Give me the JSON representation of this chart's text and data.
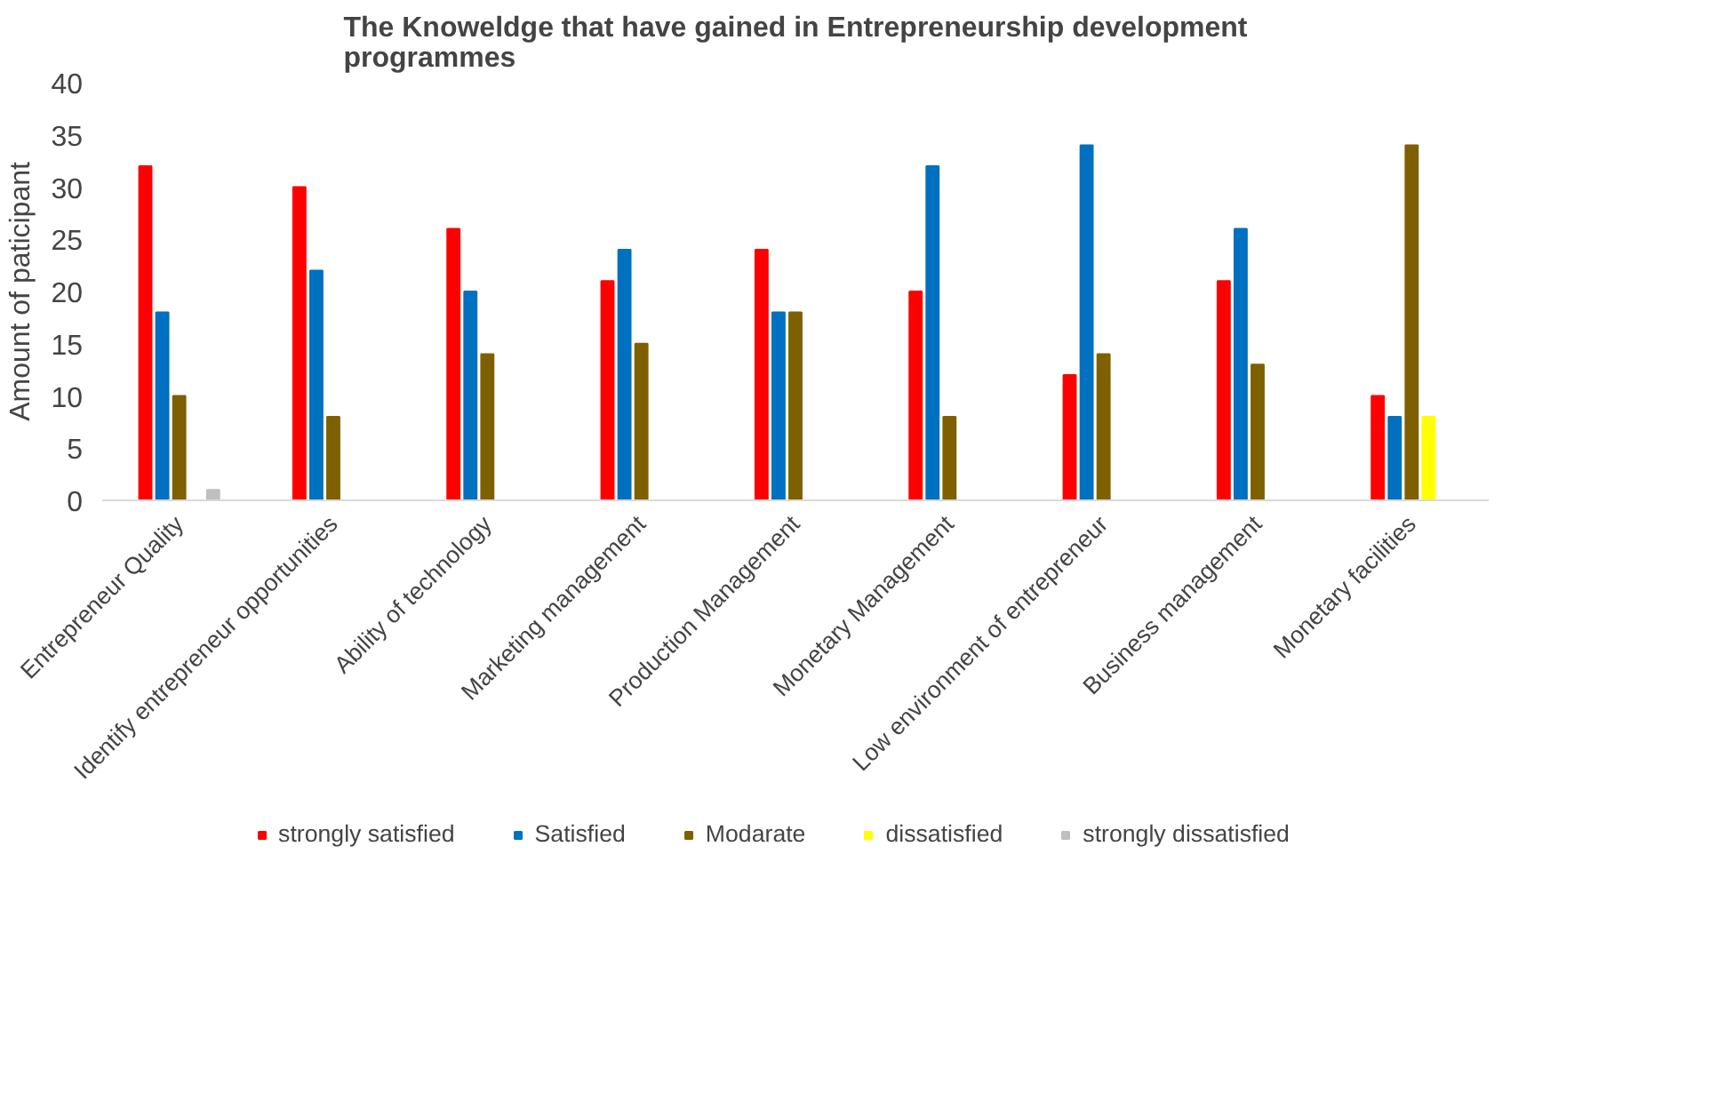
{
  "chart_data": {
    "type": "bar",
    "title": "The Knoweldge that have gained in Entrepreneurship development programmes",
    "ylabel": "Amount of paticipant",
    "categories": [
      "Entrepreneur Quality",
      "Identify entrepreneur opportunities",
      "Ability of technology",
      "Marketing management",
      "Production Management",
      "Monetary Management",
      "Low environment of entrepreneur",
      "Business management",
      "Monetary facilities"
    ],
    "series": [
      {
        "name": "strongly satisfied",
        "color": "#ff0000",
        "values": [
          32,
          30,
          26,
          21,
          24,
          20,
          12,
          21,
          10
        ]
      },
      {
        "name": "Satisfied",
        "color": "#0070c0",
        "values": [
          18,
          22,
          20,
          24,
          18,
          32,
          34,
          26,
          8
        ]
      },
      {
        "name": "Modarate",
        "color": "#7f6000",
        "values": [
          10,
          8,
          14,
          15,
          18,
          8,
          14,
          13,
          34
        ]
      },
      {
        "name": "dissatisfied",
        "color": "#ffff00",
        "values": [
          null,
          null,
          null,
          null,
          null,
          null,
          null,
          null,
          8
        ]
      },
      {
        "name": "strongly dissatisfied",
        "color": "#bfbfbf",
        "values": [
          1,
          null,
          null,
          null,
          null,
          null,
          null,
          null,
          null
        ]
      }
    ],
    "ylim": [
      0,
      40
    ],
    "yticks": [
      0,
      5,
      10,
      15,
      20,
      25,
      30,
      35,
      40
    ],
    "grid": false,
    "legend": "bottom"
  }
}
